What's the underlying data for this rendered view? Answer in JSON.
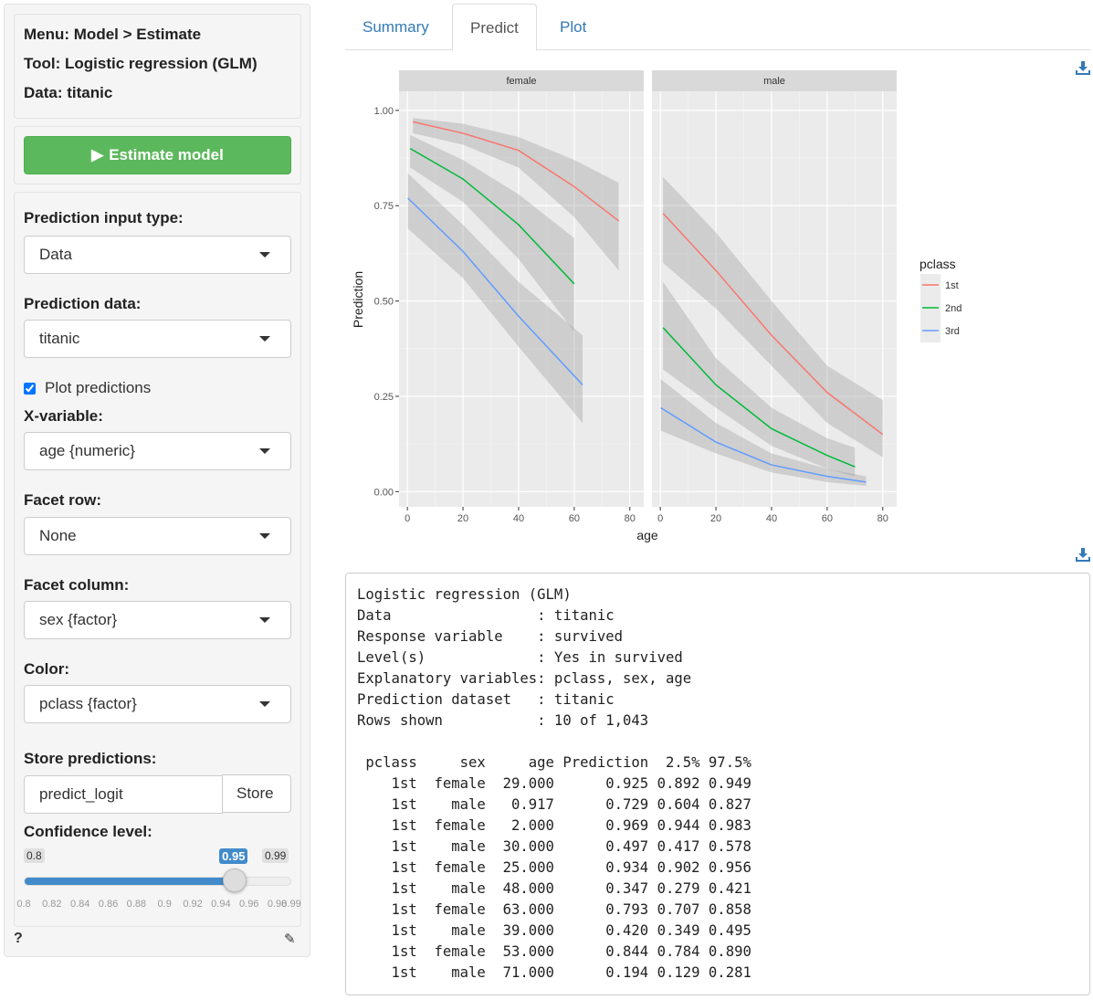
{
  "sidebar": {
    "menu": "Menu: Model > Estimate",
    "tool": "Tool: Logistic regression (GLM)",
    "data": "Data: titanic",
    "estimate_label": "Estimate model",
    "pred_input_label": "Prediction input type:",
    "pred_input_value": "Data",
    "pred_data_label": "Prediction data:",
    "pred_data_value": "titanic",
    "plot_predictions_label": "Plot predictions",
    "plot_predictions_checked": true,
    "xvar_label": "X-variable:",
    "xvar_value": "age {numeric}",
    "facet_row_label": "Facet row:",
    "facet_row_value": "None",
    "facet_col_label": "Facet column:",
    "facet_col_value": "sex {factor}",
    "color_label": "Color:",
    "color_value": "pclass {factor}",
    "store_label": "Store predictions:",
    "store_value": "predict_logit",
    "store_button": "Store",
    "conf_label": "Confidence level:",
    "conf_min": "0.8",
    "conf_max": "0.99",
    "conf_value": "0.95",
    "conf_fraction": 0.789,
    "ticks": [
      "0.8",
      "0.82",
      "0.84",
      "0.86",
      "0.88",
      "0.9",
      "0.92",
      "0.94",
      "0.96",
      "0.98",
      "0.99"
    ],
    "help": "?",
    "accent": "#428bca"
  },
  "tabs": [
    {
      "label": "Summary"
    },
    {
      "label": "Predict"
    },
    {
      "label": "Plot"
    }
  ],
  "active_tab": "Predict",
  "chart_data": {
    "type": "line",
    "xlabel": "age",
    "ylabel": "Prediction",
    "facets": [
      "female",
      "male"
    ],
    "xlim": [
      -3,
      85
    ],
    "ylim": [
      -0.04,
      1.05
    ],
    "xticks": [
      "0",
      "20",
      "40",
      "60",
      "80"
    ],
    "yticks": [
      "0.00",
      "0.25",
      "0.50",
      "0.75",
      "1.00"
    ],
    "legend": {
      "title": "pclass",
      "position": "right"
    },
    "colors": {
      "1st": "#f8766d",
      "2nd": "#00ba38",
      "3rd": "#619cff"
    },
    "series": [
      {
        "facet": "female",
        "name": "1st",
        "x": [
          2,
          20,
          40,
          60,
          76
        ],
        "y": [
          0.97,
          0.94,
          0.895,
          0.8,
          0.71
        ],
        "lower": [
          0.94,
          0.91,
          0.85,
          0.72,
          0.58
        ],
        "upper": [
          0.98,
          0.965,
          0.93,
          0.87,
          0.81
        ]
      },
      {
        "facet": "female",
        "name": "2nd",
        "x": [
          1,
          20,
          40,
          60
        ],
        "y": [
          0.9,
          0.82,
          0.7,
          0.545
        ],
        "lower": [
          0.85,
          0.76,
          0.61,
          0.42
        ],
        "upper": [
          0.935,
          0.87,
          0.78,
          0.665
        ]
      },
      {
        "facet": "female",
        "name": "3rd",
        "x": [
          0.17,
          20,
          40,
          63
        ],
        "y": [
          0.77,
          0.63,
          0.46,
          0.28
        ],
        "lower": [
          0.69,
          0.56,
          0.38,
          0.18
        ],
        "upper": [
          0.835,
          0.7,
          0.55,
          0.41
        ]
      },
      {
        "facet": "male",
        "name": "1st",
        "x": [
          1,
          20,
          40,
          60,
          80
        ],
        "y": [
          0.73,
          0.58,
          0.41,
          0.26,
          0.15
        ],
        "lower": [
          0.6,
          0.48,
          0.33,
          0.18,
          0.09
        ],
        "upper": [
          0.825,
          0.68,
          0.5,
          0.33,
          0.24
        ]
      },
      {
        "facet": "male",
        "name": "2nd",
        "x": [
          1,
          20,
          40,
          60,
          70
        ],
        "y": [
          0.43,
          0.28,
          0.165,
          0.095,
          0.065
        ],
        "lower": [
          0.32,
          0.22,
          0.12,
          0.06,
          0.04
        ],
        "upper": [
          0.55,
          0.35,
          0.22,
          0.14,
          0.115
        ]
      },
      {
        "facet": "male",
        "name": "3rd",
        "x": [
          0.17,
          20,
          40,
          60,
          74
        ],
        "y": [
          0.22,
          0.13,
          0.07,
          0.04,
          0.025
        ],
        "lower": [
          0.16,
          0.1,
          0.05,
          0.025,
          0.015
        ],
        "upper": [
          0.295,
          0.18,
          0.1,
          0.06,
          0.04
        ]
      }
    ]
  },
  "output": {
    "header": [
      "Logistic regression (GLM)",
      "Data                 : titanic",
      "Response variable    : survived",
      "Level(s)             : Yes in survived",
      "Explanatory variables: pclass, sex, age",
      "Prediction dataset   : titanic",
      "Rows shown           : 10 of 1,043"
    ],
    "columns": [
      " pclass",
      "    sex",
      "    age",
      "Prediction",
      " 2.5%",
      "97.5%"
    ],
    "rows": [
      [
        "1st",
        "female",
        "29.000",
        "0.925",
        "0.892",
        "0.949"
      ],
      [
        "1st",
        "male",
        "0.917",
        "0.729",
        "0.604",
        "0.827"
      ],
      [
        "1st",
        "female",
        "2.000",
        "0.969",
        "0.944",
        "0.983"
      ],
      [
        "1st",
        "male",
        "30.000",
        "0.497",
        "0.417",
        "0.578"
      ],
      [
        "1st",
        "female",
        "25.000",
        "0.934",
        "0.902",
        "0.956"
      ],
      [
        "1st",
        "male",
        "48.000",
        "0.347",
        "0.279",
        "0.421"
      ],
      [
        "1st",
        "female",
        "63.000",
        "0.793",
        "0.707",
        "0.858"
      ],
      [
        "1st",
        "male",
        "39.000",
        "0.420",
        "0.349",
        "0.495"
      ],
      [
        "1st",
        "female",
        "53.000",
        "0.844",
        "0.784",
        "0.890"
      ],
      [
        "1st",
        "male",
        "71.000",
        "0.194",
        "0.129",
        "0.281"
      ]
    ]
  }
}
